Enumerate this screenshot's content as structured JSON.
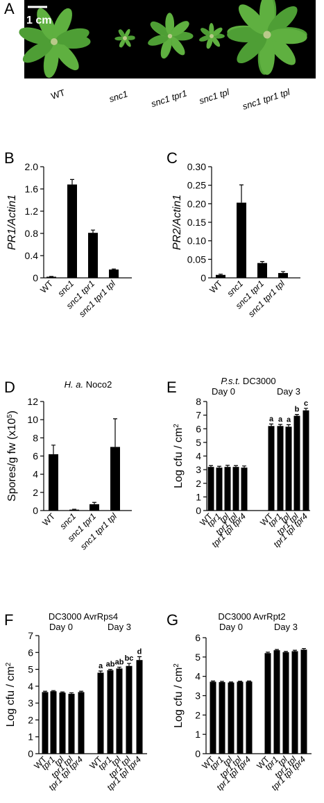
{
  "figure_a": {
    "letter": "A",
    "scale_bar": "1 cm",
    "labels": [
      {
        "label": "WT"
      },
      {
        "label": "snc1",
        "italic": true
      },
      {
        "label": "snc1 tpr1",
        "italic": true
      },
      {
        "label": "snc1 tpl",
        "italic": true
      },
      {
        "label": "snc1 tpr1 tpl",
        "italic": true
      }
    ]
  },
  "chart_data": [
    {
      "panel": "B",
      "type": "bar",
      "color": "#000000",
      "ylabel": [
        {
          "italic": "PR1/Actin1"
        }
      ],
      "categories": [
        {
          "label": "WT"
        },
        {
          "label": "snc1",
          "italic": true
        },
        {
          "label": "snc1 tpr1",
          "italic": true
        },
        {
          "label": "snc1 tpr1 tpl",
          "italic": true
        }
      ],
      "values": [
        0.02,
        1.68,
        0.81,
        0.15
      ],
      "errors": [
        0.005,
        0.09,
        0.05,
        0.01
      ],
      "ylim": [
        0,
        2
      ],
      "yticks": [
        0,
        0.4,
        0.8,
        1.2,
        1.6,
        {
          "value": 2,
          "label": "2.0"
        }
      ]
    },
    {
      "panel": "C",
      "type": "bar",
      "color": "#000000",
      "ylabel": [
        {
          "italic": "PR2/Actin1"
        }
      ],
      "categories": [
        {
          "label": "WT"
        },
        {
          "label": "snc1",
          "italic": true
        },
        {
          "label": "snc1 tpr1",
          "italic": true
        },
        {
          "label": "snc1 tpr1 tpl",
          "italic": true
        }
      ],
      "values": [
        0.008,
        0.203,
        0.04,
        0.013
      ],
      "errors": [
        0.002,
        0.048,
        0.004,
        0.004
      ],
      "ylim": [
        0,
        0.3
      ],
      "yticks": [
        0,
        0.05,
        {
          "value": 0.1,
          "label": "0.10"
        },
        0.15,
        {
          "value": 0.2,
          "label": "0.20"
        },
        0.25,
        {
          "value": 0.3,
          "label": "0.30"
        }
      ]
    },
    {
      "panel": "D",
      "type": "bar",
      "color": "#000000",
      "title": [
        {
          "italic": "H. a."
        },
        {
          "text": " Noco2"
        }
      ],
      "ylabel": [
        {
          "text": "Spores/g fw (x10"
        },
        {
          "sup": "5"
        },
        {
          "text": ")"
        }
      ],
      "categories": [
        {
          "label": "WT"
        },
        {
          "label": "snc1",
          "italic": true
        },
        {
          "label": "snc1 tpr1",
          "italic": true
        },
        {
          "label": "snc1 tpr1 tpl",
          "italic": true
        }
      ],
      "values": [
        6.2,
        0.1,
        0.7,
        7.0
      ],
      "errors": [
        1.0,
        0.05,
        0.2,
        3.1
      ],
      "ylim": [
        0,
        12
      ],
      "yticks": [
        0,
        2,
        4,
        6,
        8,
        10,
        12
      ]
    },
    {
      "panel": "E",
      "type": "bar",
      "color": "#000000",
      "title": [
        {
          "italic": "P.s.t."
        },
        {
          "text": " DC3000"
        }
      ],
      "ylabel": [
        {
          "text": "Log cfu / cm"
        },
        {
          "sup": "2"
        }
      ],
      "groups": [
        {
          "label": "Day 0",
          "categories": [
            {
              "label": "WT"
            },
            {
              "label": "tpr1",
              "italic": true
            },
            {
              "label": "tpl",
              "italic": true
            },
            {
              "label": "tpr1 tpl",
              "italic": true
            },
            {
              "label": "tpr1 tpl tpr4",
              "italic": true
            }
          ],
          "values": [
            3.2,
            3.15,
            3.2,
            3.2,
            3.15
          ],
          "errors": [
            0.1,
            0.1,
            0.12,
            0.1,
            0.12
          ]
        },
        {
          "label": "Day 3",
          "categories": [
            {
              "label": "WT"
            },
            {
              "label": "tpr1",
              "italic": true
            },
            {
              "label": "tpl",
              "italic": true
            },
            {
              "label": "tpr1 tpl",
              "italic": true
            },
            {
              "label": "tpr1 tpl tpr4",
              "italic": true
            }
          ],
          "values": [
            6.2,
            6.2,
            6.15,
            6.95,
            7.35
          ],
          "errors": [
            0.15,
            0.12,
            0.15,
            0.1,
            0.15
          ],
          "letters": [
            "a",
            "a",
            "a",
            "b",
            "c"
          ]
        }
      ],
      "ylim": [
        0,
        8
      ],
      "yticks": [
        0,
        1,
        2,
        3,
        4,
        5,
        6,
        7,
        8
      ]
    },
    {
      "panel": "F",
      "type": "bar",
      "color": "#000000",
      "title": [
        {
          "text": "DC3000 AvrRps4"
        }
      ],
      "ylabel": [
        {
          "text": "Log cfu / cm"
        },
        {
          "sup": "2"
        }
      ],
      "groups": [
        {
          "label": "Day 0",
          "categories": [
            {
              "label": "WT"
            },
            {
              "label": "tpr1",
              "italic": true
            },
            {
              "label": "tpl",
              "italic": true
            },
            {
              "label": "tpr1 tpl",
              "italic": true
            },
            {
              "label": "tpr1 tpl tpr4",
              "italic": true
            }
          ],
          "values": [
            3.65,
            3.7,
            3.62,
            3.55,
            3.65
          ],
          "errors": [
            0.05,
            0.04,
            0.04,
            0.06,
            0.05
          ]
        },
        {
          "label": "Day 3",
          "categories": [
            {
              "label": "WT"
            },
            {
              "label": "tpr1",
              "italic": true
            },
            {
              "label": "tpl",
              "italic": true
            },
            {
              "label": "tpr1 tpl",
              "italic": true
            },
            {
              "label": "tpr1 tpl tpr4",
              "italic": true
            }
          ],
          "values": [
            4.8,
            4.95,
            5.05,
            5.2,
            5.55
          ],
          "errors": [
            0.1,
            0.05,
            0.08,
            0.15,
            0.2
          ],
          "letters": [
            "a",
            "ab",
            "ab",
            "bc",
            "d"
          ]
        }
      ],
      "ylim": [
        0,
        7
      ],
      "yticks": [
        0,
        1,
        2,
        3,
        4,
        5,
        6,
        7
      ]
    },
    {
      "panel": "G",
      "type": "bar",
      "color": "#000000",
      "title": [
        {
          "text": "DC3000 AvrRpt2"
        }
      ],
      "ylabel": [
        {
          "text": "Log cfu / cm"
        },
        {
          "sup": "2"
        }
      ],
      "groups": [
        {
          "label": "Day 0",
          "categories": [
            {
              "label": "WT"
            },
            {
              "label": "tpr1",
              "italic": true
            },
            {
              "label": "tpl",
              "italic": true
            },
            {
              "label": "tpr1 tpl",
              "italic": true
            },
            {
              "label": "tpr1 tpl tpr4",
              "italic": true
            }
          ],
          "values": [
            3.72,
            3.7,
            3.68,
            3.72,
            3.73
          ],
          "errors": [
            0.04,
            0.04,
            0.03,
            0.03,
            0.03
          ]
        },
        {
          "label": "Day 3",
          "categories": [
            {
              "label": "WT"
            },
            {
              "label": "tpr1",
              "italic": true
            },
            {
              "label": "tpl",
              "italic": true
            },
            {
              "label": "tpr1 tpl",
              "italic": true
            },
            {
              "label": "tpr1 tpl tpr4",
              "italic": true
            }
          ],
          "values": [
            5.2,
            5.35,
            5.25,
            5.3,
            5.38
          ],
          "errors": [
            0.05,
            0.04,
            0.04,
            0.05,
            0.06
          ]
        }
      ],
      "ylim": [
        0,
        6
      ],
      "yticks": [
        0,
        1,
        2,
        3,
        4,
        5,
        6
      ]
    }
  ]
}
